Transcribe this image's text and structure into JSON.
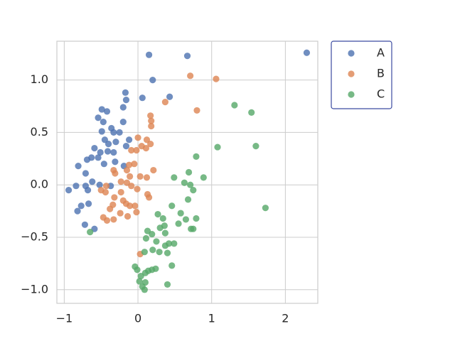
{
  "chart_data": {
    "type": "scatter",
    "xlim": [
      -1.1,
      2.44
    ],
    "ylim": [
      -1.13,
      1.37
    ],
    "xticks": [
      {
        "value": -1,
        "label": "−1"
      },
      0,
      1,
      2
    ],
    "yticks": [
      {
        "value": -1,
        "label": "−1.0"
      },
      {
        "value": -0.5,
        "label": "−0.5"
      },
      {
        "value": 0,
        "label": "0.0"
      },
      0.5,
      {
        "value": 1,
        "label": "1.0"
      }
    ],
    "grid": true,
    "legend": "outside-upper-right",
    "series": [
      {
        "name": "A",
        "color": "#4c72b0",
        "x": [
          0.15,
          0.67,
          2.29,
          0.2,
          0.43,
          0.06,
          -0.17,
          -0.16,
          -0.2,
          -0.49,
          -0.42,
          -0.54,
          -0.47,
          -0.2,
          -0.36,
          -0.49,
          -0.33,
          -0.25,
          -0.59,
          -0.45,
          -0.4,
          -0.3,
          -0.16,
          -0.12,
          -0.41,
          -0.51,
          -0.63,
          -0.69,
          -0.81,
          -0.54,
          -0.46,
          -0.31,
          -0.19,
          -0.71,
          -0.62,
          -0.71,
          -0.68,
          -0.94,
          -0.84,
          -0.52,
          -0.37,
          -0.77,
          -0.67,
          -0.82,
          -0.72,
          -0.59,
          -0.33
        ],
        "values": [
          1.24,
          1.23,
          1.26,
          1.0,
          0.84,
          0.83,
          0.88,
          0.81,
          0.74,
          0.72,
          0.7,
          0.64,
          0.6,
          0.6,
          0.54,
          0.51,
          0.5,
          0.5,
          0.35,
          0.43,
          0.39,
          0.41,
          0.37,
          0.43,
          0.32,
          0.31,
          0.26,
          0.24,
          0.18,
          0.26,
          0.2,
          0.22,
          0.18,
          0.11,
          0.03,
          -0.01,
          -0.05,
          -0.05,
          -0.01,
          0.0,
          -0.01,
          -0.2,
          -0.18,
          -0.25,
          -0.38,
          -0.42,
          0.31
        ]
      },
      {
        "name": "B",
        "color": "#dd8452",
        "x": [
          0.71,
          1.06,
          0.37,
          0.8,
          0.17,
          0.18,
          0.18,
          0.0,
          0.12,
          0.05,
          0.11,
          0.17,
          -0.09,
          -0.02,
          -0.05,
          -0.12,
          -0.15,
          -0.33,
          -0.31,
          0.03,
          0.12,
          0.21,
          -0.11,
          -0.23,
          -0.15,
          -0.43,
          -0.5,
          -0.44,
          -0.23,
          -0.09,
          -0.01,
          0.13,
          0.15,
          -0.32,
          -0.2,
          -0.16,
          -0.34,
          -0.38,
          -0.11,
          -0.04,
          -0.02,
          -0.24,
          -0.47,
          -0.42,
          -0.33,
          -0.14,
          0.03
        ],
        "values": [
          1.04,
          1.01,
          0.79,
          0.71,
          0.66,
          0.61,
          0.56,
          0.45,
          0.43,
          0.37,
          0.35,
          0.39,
          0.33,
          0.33,
          0.2,
          0.19,
          0.14,
          0.14,
          0.11,
          0.08,
          0.07,
          0.14,
          0.08,
          0.03,
          0.02,
          -0.01,
          -0.05,
          -0.07,
          -0.07,
          -0.01,
          -0.04,
          -0.09,
          -0.12,
          -0.12,
          -0.15,
          -0.18,
          -0.19,
          -0.23,
          -0.2,
          -0.2,
          -0.26,
          -0.27,
          -0.31,
          -0.34,
          -0.33,
          -0.3,
          -0.66
        ]
      },
      {
        "name": "C",
        "color": "#55a868",
        "x": [
          1.31,
          1.54,
          1.6,
          1.08,
          0.79,
          0.69,
          0.89,
          0.49,
          0.63,
          0.71,
          0.75,
          0.68,
          1.73,
          0.46,
          0.58,
          0.27,
          0.34,
          0.79,
          0.65,
          0.55,
          0.36,
          0.75,
          0.72,
          0.3,
          0.37,
          0.13,
          0.19,
          0.11,
          0.25,
          0.42,
          0.49,
          0.37,
          0.09,
          0.2,
          0.29,
          0.4,
          0.46,
          -0.04,
          -0.01,
          0.24,
          0.14,
          0.1,
          0.04,
          0.19,
          0.02,
          0.1,
          0.06,
          0.09,
          0.4,
          -0.65
        ],
        "values": [
          0.76,
          0.69,
          0.37,
          0.36,
          0.27,
          0.12,
          0.07,
          0.07,
          0.02,
          0.0,
          -0.05,
          -0.14,
          -0.22,
          -0.2,
          -0.27,
          -0.28,
          -0.32,
          -0.32,
          -0.33,
          -0.37,
          -0.39,
          -0.42,
          -0.42,
          -0.41,
          -0.46,
          -0.44,
          -0.47,
          -0.51,
          -0.54,
          -0.56,
          -0.56,
          -0.58,
          -0.64,
          -0.62,
          -0.64,
          -0.65,
          -0.77,
          -0.78,
          -0.81,
          -0.8,
          -0.82,
          -0.84,
          -0.87,
          -0.81,
          -0.92,
          -0.93,
          -0.97,
          -1.0,
          -0.95,
          -0.45
        ]
      }
    ]
  }
}
